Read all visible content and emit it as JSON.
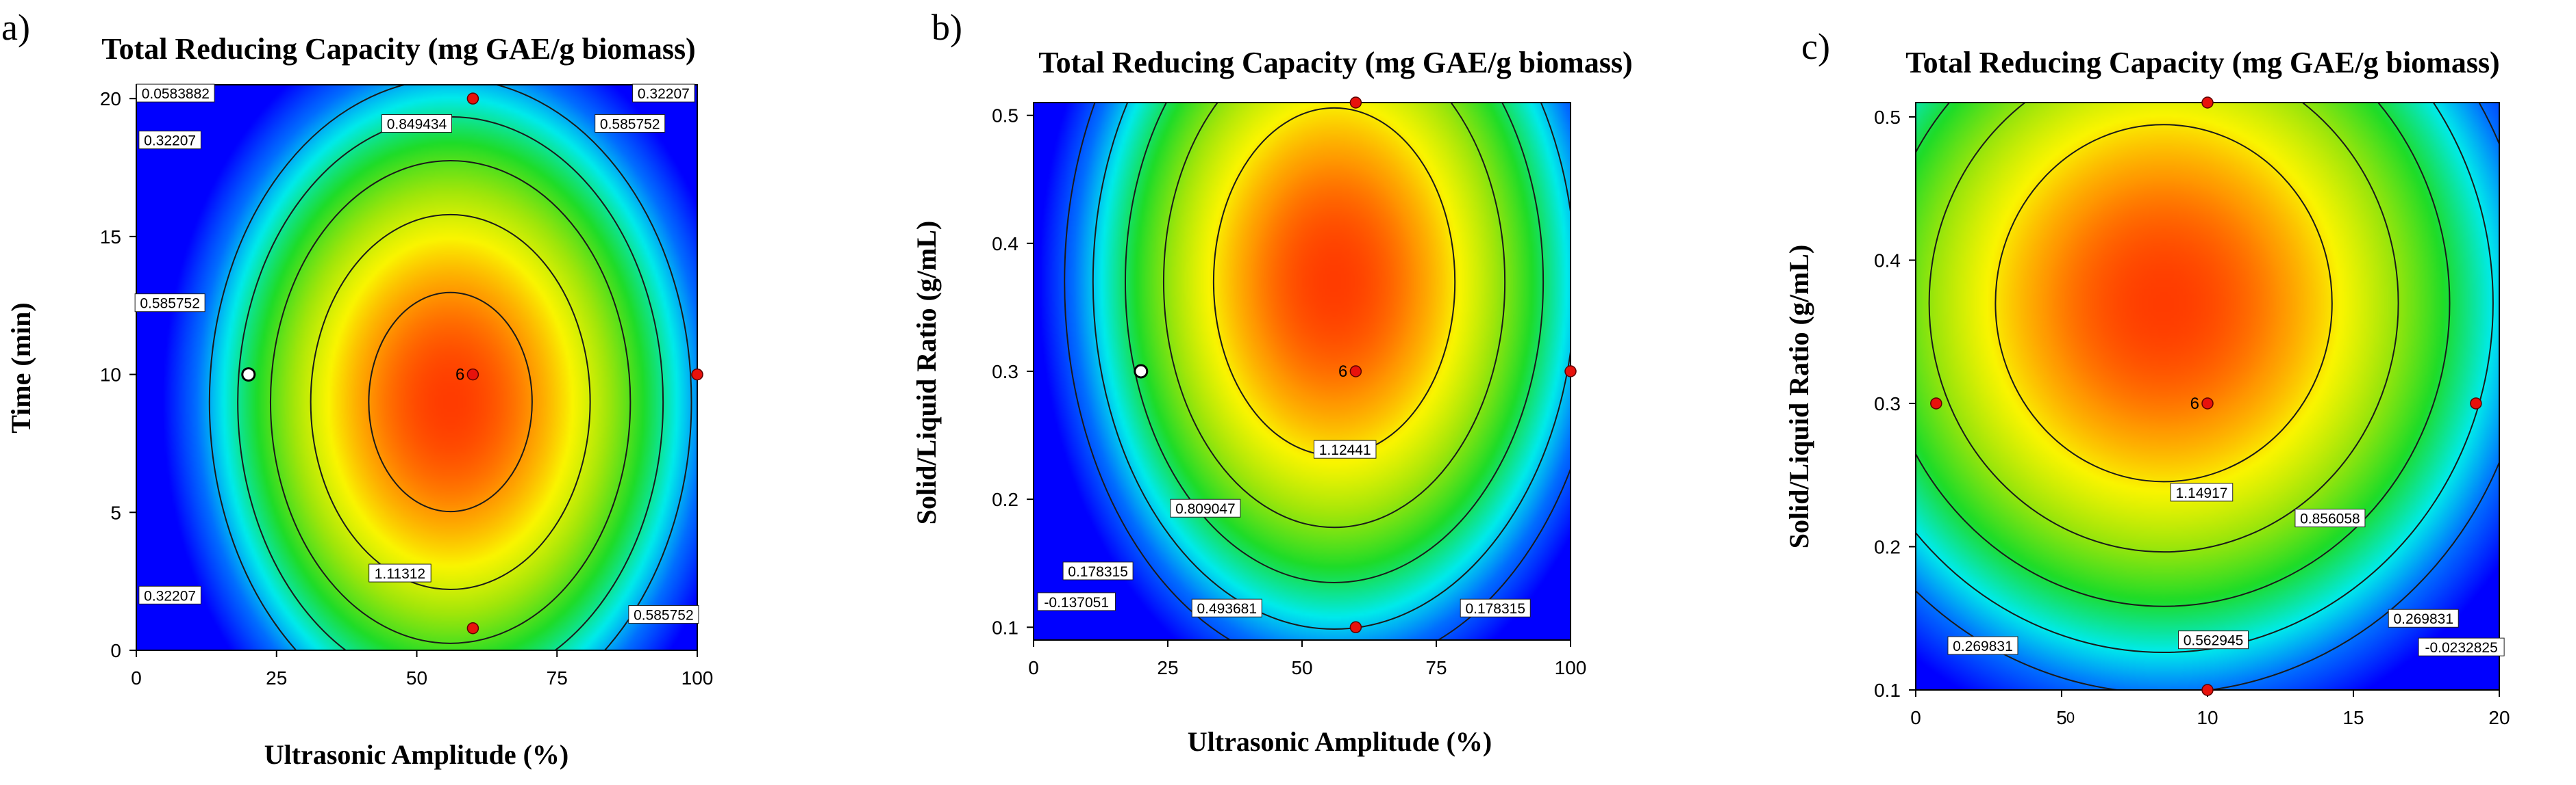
{
  "chart_data": [
    {
      "type": "heatmap",
      "subtype": "contour",
      "panel_label": "a)",
      "title": "Total Reducing  Capacity (mg GAE/g biomass)",
      "xlabel": "Ultrasonic  Amplitude (%)",
      "ylabel": "Time (min)",
      "xlim": [
        0,
        100
      ],
      "ylim": [
        0,
        20.5
      ],
      "xticks": [
        0,
        25,
        50,
        75,
        100
      ],
      "yticks": [
        0,
        5,
        10,
        15,
        20
      ],
      "xtick_labels": [
        "0",
        "25",
        "50",
        "75",
        "100"
      ],
      "ytick_labels": [
        "0",
        "5",
        "10",
        "15",
        "20"
      ],
      "optimum": {
        "x": 56,
        "y": 9,
        "value": 1.25
      },
      "spread": {
        "x": 44,
        "y": 12
      },
      "contours": [
        {
          "level": 1.11312,
          "label": "1.11312",
          "label_at": [
            47,
            2.8
          ]
        },
        {
          "level": 0.849434,
          "label": "0.849434",
          "label_at": [
            50,
            19.1
          ]
        },
        {
          "level": 0.585752,
          "label": "0.585752",
          "label_at": [
            6,
            12.6
          ]
        },
        {
          "level": 0.585752,
          "label": "0.585752",
          "label_at": [
            88,
            19.1
          ]
        },
        {
          "level": 0.585752,
          "label": "0.585752",
          "label_at": [
            94,
            1.3
          ]
        },
        {
          "level": 0.32207,
          "label": "0.32207",
          "label_at": [
            6,
            18.5
          ]
        },
        {
          "level": 0.32207,
          "label": "0.32207",
          "label_at": [
            6,
            2.0
          ]
        },
        {
          "level": 0.32207,
          "label": "0.32207",
          "label_at": [
            94,
            20.2
          ]
        },
        {
          "level": 0.0583882,
          "label": "0.0583882",
          "label_at": [
            7,
            20.2
          ]
        }
      ],
      "design_points": [
        {
          "x": 60,
          "y": 10,
          "kind": "center",
          "label": "6"
        },
        {
          "x": 60,
          "y": 20,
          "kind": "red"
        },
        {
          "x": 100,
          "y": 10,
          "kind": "red"
        },
        {
          "x": 60,
          "y": 0.8,
          "kind": "red"
        },
        {
          "x": 20,
          "y": 10,
          "kind": "white"
        }
      ]
    },
    {
      "type": "heatmap",
      "subtype": "contour",
      "panel_label": "b)",
      "title": "Total Reducing  Capacity (mg GAE/g biomass)",
      "xlabel": "Ultrasonic  Amplitude (%)",
      "ylabel": "Solid/Liquid Ratio (g/mL)",
      "xlim": [
        0,
        100
      ],
      "ylim": [
        0.09,
        0.51
      ],
      "xticks": [
        0,
        25,
        50,
        75,
        100
      ],
      "yticks": [
        0.1,
        0.2,
        0.3,
        0.4,
        0.5
      ],
      "xtick_labels": [
        "0",
        "25",
        "50",
        "75",
        "100"
      ],
      "ytick_labels": [
        "0.1",
        "0.2",
        "0.3",
        "0.4",
        "0.5"
      ],
      "optimum": {
        "x": 56,
        "y": 0.37,
        "value": 1.44
      },
      "spread": {
        "x": 48,
        "y": 0.29
      },
      "contours": [
        {
          "level": 1.12441,
          "label": "1.12441",
          "label_at": [
            58,
            0.239
          ]
        },
        {
          "level": 0.809047,
          "label": "0.809047",
          "label_at": [
            32,
            0.193
          ]
        },
        {
          "level": 0.493681,
          "label": "0.493681",
          "label_at": [
            36,
            0.115
          ]
        },
        {
          "level": 0.178315,
          "label": "0.178315",
          "label_at": [
            12,
            0.144
          ]
        },
        {
          "level": 0.178315,
          "label": "0.178315",
          "label_at": [
            86,
            0.115
          ]
        },
        {
          "level": -0.137051,
          "label": "-0.137051",
          "label_at": [
            8,
            0.12
          ]
        }
      ],
      "design_points": [
        {
          "x": 60,
          "y": 0.3,
          "kind": "center",
          "label": "6"
        },
        {
          "x": 60,
          "y": 0.51,
          "kind": "red"
        },
        {
          "x": 100,
          "y": 0.3,
          "kind": "red"
        },
        {
          "x": 60,
          "y": 0.1,
          "kind": "red"
        },
        {
          "x": 20,
          "y": 0.3,
          "kind": "white"
        }
      ]
    },
    {
      "type": "heatmap",
      "subtype": "contour",
      "panel_label": "c)",
      "title": "Total Reducing  Capacity (mg GAE/g biomass)",
      "xlabel": "",
      "stray_mark": "0",
      "ylabel": "Solid/Liquid Ratio (g/mL)",
      "xlim": [
        0,
        20
      ],
      "ylim": [
        0.1,
        0.51
      ],
      "xticks": [
        0,
        5,
        10,
        15,
        20
      ],
      "yticks": [
        0.1,
        0.2,
        0.3,
        0.4,
        0.5
      ],
      "xtick_labels": [
        "0",
        "5",
        "10",
        "15",
        "20"
      ],
      "ytick_labels": [
        "0.1",
        "0.2",
        "0.3",
        "0.4",
        "0.5"
      ],
      "optimum": {
        "x": 8.5,
        "y": 0.37,
        "value": 1.46
      },
      "spread": {
        "x": 12.5,
        "y": 0.27
      },
      "contours": [
        {
          "level": 1.14917,
          "label": "1.14917",
          "label_at": [
            9.8,
            0.238
          ]
        },
        {
          "level": 0.856058,
          "label": "0.856058",
          "label_at": [
            14.2,
            0.22
          ]
        },
        {
          "level": 0.562945,
          "label": "0.562945",
          "label_at": [
            10.2,
            0.135
          ]
        },
        {
          "level": 0.269831,
          "label": "0.269831",
          "label_at": [
            2.3,
            0.131
          ]
        },
        {
          "level": 0.269831,
          "label": "0.269831",
          "label_at": [
            17.4,
            0.15
          ]
        },
        {
          "level": -0.0232825,
          "label": "-0.0232825",
          "label_at": [
            18.7,
            0.13
          ]
        }
      ],
      "design_points": [
        {
          "x": 10,
          "y": 0.3,
          "kind": "center",
          "label": "6"
        },
        {
          "x": 10,
          "y": 0.51,
          "kind": "red"
        },
        {
          "x": 0.7,
          "y": 0.3,
          "kind": "red"
        },
        {
          "x": 19.2,
          "y": 0.3,
          "kind": "red"
        },
        {
          "x": 10,
          "y": 0.1,
          "kind": "red"
        }
      ]
    }
  ]
}
